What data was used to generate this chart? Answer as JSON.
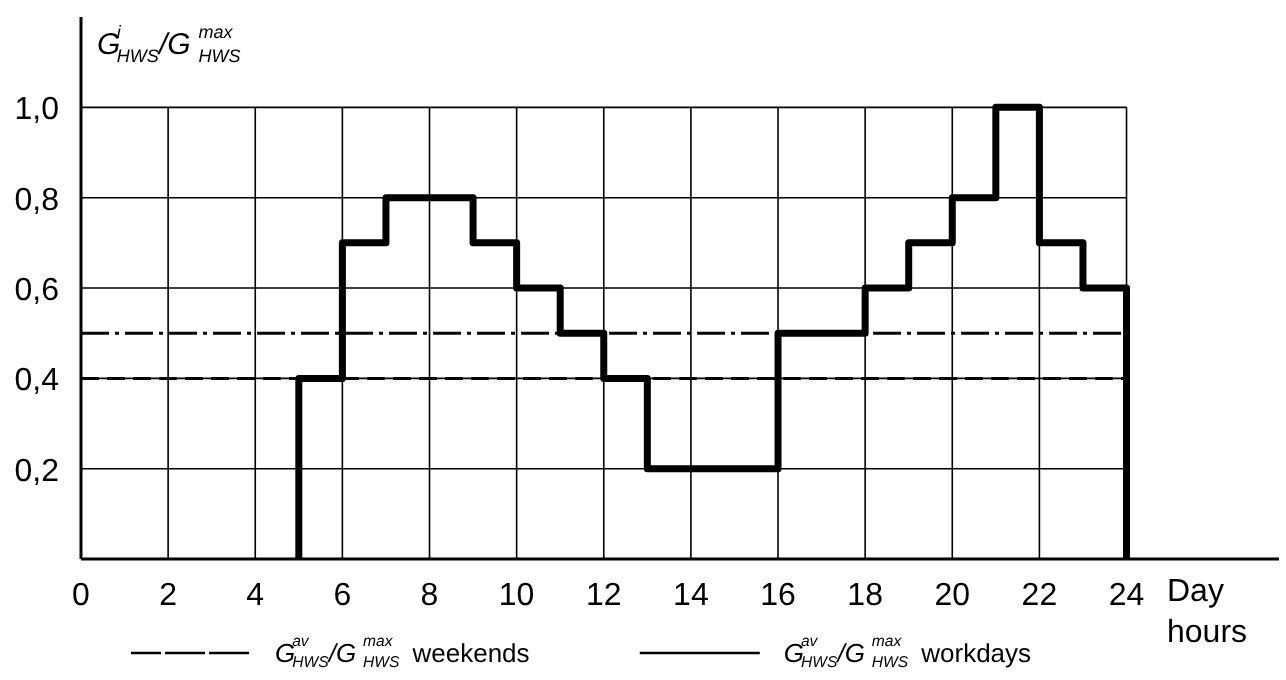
{
  "chart_data": {
    "type": "step",
    "ylabel": "G$^{i}$$_{HWS}$/G$^{max}$$_{HWS}$",
    "xlabel": "Day hours",
    "x": [
      5,
      5,
      6,
      7,
      8,
      9,
      10,
      11,
      12,
      13,
      14,
      15,
      16,
      17,
      18,
      19,
      20,
      21,
      22,
      23,
      24
    ],
    "values": [
      0,
      0.4,
      0.7,
      0.8,
      0.8,
      0.7,
      0.6,
      0.5,
      0.4,
      0.2,
      0.2,
      0.2,
      0.5,
      0.5,
      0.6,
      0.7,
      0.8,
      1.0,
      0.7,
      0.6,
      0
    ],
    "color": "#000000",
    "xlim": [
      0,
      27.5
    ],
    "ylim": [
      0,
      1.2
    ],
    "xticks": [
      0,
      2,
      4,
      6,
      8,
      10,
      12,
      14,
      16,
      18,
      20,
      22,
      24
    ],
    "yticks": [
      {
        "value": 0.2,
        "label": "0,2"
      },
      {
        "value": 0.4,
        "label": "0,4"
      },
      {
        "value": 0.6,
        "label": "0,6"
      },
      {
        "value": 0.8,
        "label": "0,8"
      },
      {
        "value": 1.0,
        "label": "1,0"
      }
    ],
    "ref_lines": [
      {
        "axis": "y",
        "value": 0.5,
        "label": "G$^{av}$$_{HWS}$/G$^{max}$$_{HWS}$ weekends",
        "color": "#000000",
        "line_style": "dashdot"
      },
      {
        "axis": "y",
        "value": 0.4,
        "label": "G$^{av}$$_{HWS}$/G$^{max}$$_{HWS}$ workdays",
        "color": "#000000",
        "line_style": "dashed"
      }
    ],
    "grid": true,
    "legend": "bottom",
    "marker": "none",
    "line_style": "solid"
  }
}
